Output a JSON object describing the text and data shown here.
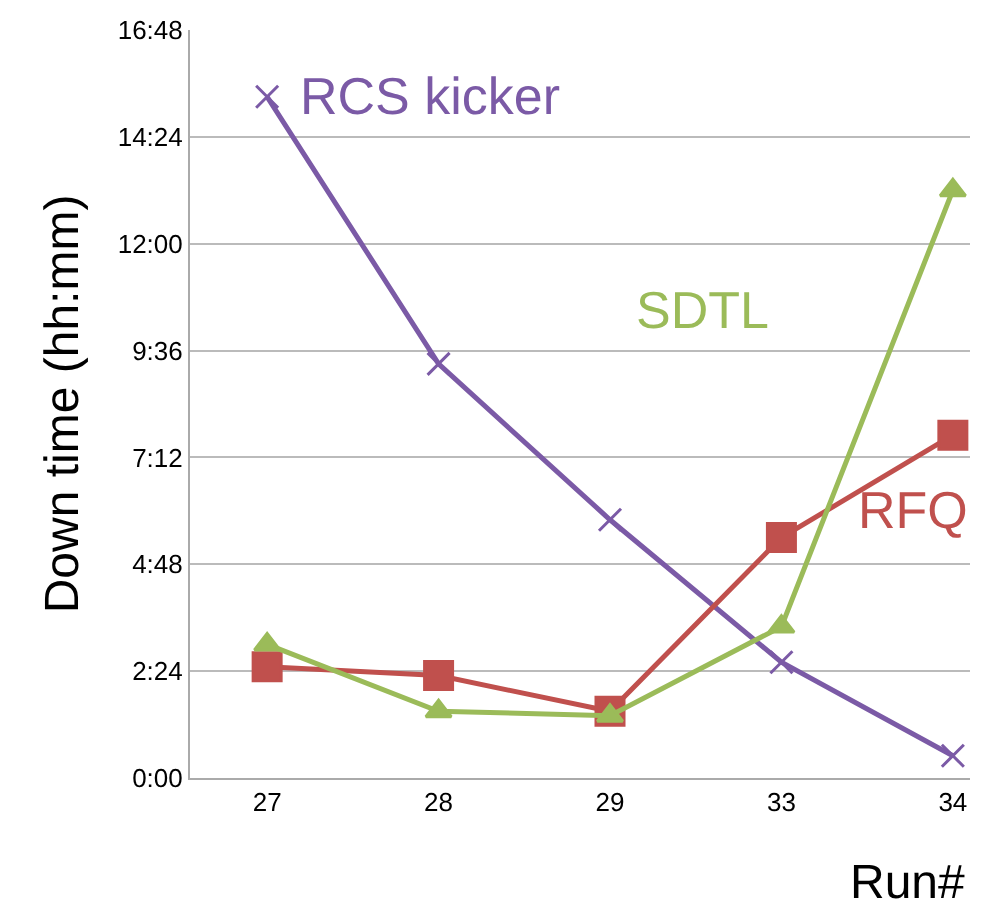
{
  "chart_data": {
    "type": "line",
    "xlabel": "Run#",
    "ylabel": "Down time (hh:mm)",
    "categories": [
      "27",
      "28",
      "29",
      "33",
      "34"
    ],
    "series": [
      {
        "name": "RCS kicker",
        "color": "#7b5aa6",
        "marker": "cross",
        "values": [
          15.3,
          9.3,
          5.8,
          2.6,
          0.5
        ]
      },
      {
        "name": "RFQ",
        "color": "#c0504d",
        "marker": "square",
        "values": [
          2.5,
          2.3,
          1.5,
          5.4,
          7.7
        ]
      },
      {
        "name": "SDTL",
        "color": "#9bbb59",
        "marker": "triangle",
        "values": [
          3.0,
          1.5,
          1.4,
          3.4,
          13.2
        ]
      }
    ],
    "ylim": [
      0,
      16.8
    ],
    "yticks": [
      {
        "value": 0,
        "label": "0:00"
      },
      {
        "value": 2.4,
        "label": "2:24"
      },
      {
        "value": 4.8,
        "label": "4:48"
      },
      {
        "value": 7.2,
        "label": "7:12"
      },
      {
        "value": 9.6,
        "label": "9:36"
      },
      {
        "value": 12,
        "label": "12:00"
      },
      {
        "value": 14.4,
        "label": "14:24"
      },
      {
        "value": 16.8,
        "label": "16:48"
      }
    ],
    "grid": "y",
    "legend": false
  }
}
